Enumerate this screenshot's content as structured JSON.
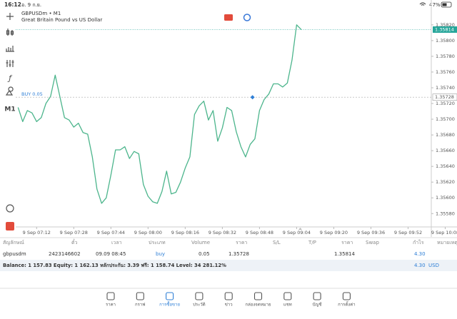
{
  "status_bar": {
    "time": "16:12",
    "date": "อ. 9 ก.ย.",
    "battery": "47%"
  },
  "toolbar": {
    "timeframe": "M1"
  },
  "chart_data": {
    "type": "line",
    "title": "GBPUSDm • M1",
    "subtitle": "Great Britain Pound vs US Dollar",
    "x": [
      "9 Sep 07:04",
      "9 Sep 07:06",
      "9 Sep 07:08",
      "9 Sep 07:10",
      "9 Sep 07:12",
      "9 Sep 07:14",
      "9 Sep 07:16",
      "9 Sep 07:18",
      "9 Sep 07:20",
      "9 Sep 07:22",
      "9 Sep 07:24",
      "9 Sep 07:26",
      "9 Sep 07:28",
      "9 Sep 07:30",
      "9 Sep 07:32",
      "9 Sep 07:34",
      "9 Sep 07:36",
      "9 Sep 07:38",
      "9 Sep 07:40",
      "9 Sep 07:42",
      "9 Sep 07:44",
      "9 Sep 07:46",
      "9 Sep 07:48",
      "9 Sep 07:50",
      "9 Sep 07:52",
      "9 Sep 07:54",
      "9 Sep 07:56",
      "9 Sep 07:58",
      "9 Sep 08:00",
      "9 Sep 08:02",
      "9 Sep 08:04",
      "9 Sep 08:06",
      "9 Sep 08:08",
      "9 Sep 08:10",
      "9 Sep 08:12",
      "9 Sep 08:14",
      "9 Sep 08:16",
      "9 Sep 08:18",
      "9 Sep 08:20",
      "9 Sep 08:22",
      "9 Sep 08:24",
      "9 Sep 08:26",
      "9 Sep 08:28",
      "9 Sep 08:30",
      "9 Sep 08:32",
      "9 Sep 08:34",
      "9 Sep 08:36",
      "9 Sep 08:38",
      "9 Sep 08:40",
      "9 Sep 08:42",
      "9 Sep 08:44",
      "9 Sep 08:46",
      "9 Sep 08:48",
      "9 Sep 08:50",
      "9 Sep 08:52",
      "9 Sep 08:54",
      "9 Sep 08:56",
      "9 Sep 08:58",
      "9 Sep 09:00",
      "9 Sep 09:02",
      "9 Sep 09:04",
      "9 Sep 09:06"
    ],
    "values": [
      1.35715,
      1.35697,
      1.35711,
      1.35708,
      1.35697,
      1.35702,
      1.3572,
      1.35729,
      1.35756,
      1.35729,
      1.35702,
      1.35699,
      1.3569,
      1.35695,
      1.35683,
      1.35681,
      1.35652,
      1.35611,
      1.35593,
      1.356,
      1.35629,
      1.35661,
      1.35661,
      1.35665,
      1.3565,
      1.35659,
      1.35656,
      1.35617,
      1.35602,
      1.35595,
      1.35593,
      1.35608,
      1.35634,
      1.35605,
      1.35607,
      1.3562,
      1.35638,
      1.35652,
      1.35706,
      1.35717,
      1.35723,
      1.35699,
      1.35711,
      1.35672,
      1.35689,
      1.35715,
      1.35711,
      1.35684,
      1.35665,
      1.35652,
      1.35668,
      1.35675,
      1.35711,
      1.35725,
      1.35732,
      1.35745,
      1.35745,
      1.35741,
      1.35746,
      1.35775,
      1.3582,
      1.35814
    ],
    "color": "#4cb58c",
    "xlim": [
      "9 Sep 07:03",
      "9 Sep 10:02"
    ],
    "xticks": [
      "9 Sep 07:12",
      "9 Sep 07:28",
      "9 Sep 07:44",
      "9 Sep 08:00",
      "9 Sep 08:16",
      "9 Sep 08:32",
      "9 Sep 08:48",
      "9 Sep 09:04",
      "9 Sep 09:20",
      "9 Sep 09:36",
      "9 Sep 09:52",
      "9 Sep 10:08"
    ],
    "ylim": [
      1.35563,
      1.35838
    ],
    "yticks": [
      {
        "value": 1.3582,
        "label": "1.35820"
      },
      {
        "value": 1.358,
        "label": "1.35800"
      },
      {
        "value": 1.3578,
        "label": "1.35780"
      },
      {
        "value": 1.3576,
        "label": "1.35760"
      },
      {
        "value": 1.3574,
        "label": "1.35740"
      },
      {
        "value": 1.3572,
        "label": "1.35720"
      },
      {
        "value": 1.357,
        "label": "1.35700"
      },
      {
        "value": 1.3568,
        "label": "1.35680"
      },
      {
        "value": 1.3566,
        "label": "1.35660"
      },
      {
        "value": 1.3564,
        "label": "1.35640"
      },
      {
        "value": 1.3562,
        "label": "1.35620"
      },
      {
        "value": 1.356,
        "label": "1.35600"
      },
      {
        "value": 1.3558,
        "label": "1.35580"
      }
    ],
    "grid": false,
    "bid": {
      "value": 1.35814,
      "color": "#26a69a"
    },
    "order": {
      "label": "BUY 0.05",
      "price": 1.35728,
      "color": "#2f7fd6"
    }
  },
  "table": {
    "header": [
      "สัญลักษณ์",
      "ตั๋ว",
      "เวลา",
      "ประเภท",
      "Volume",
      "ราคา",
      "S/L",
      "T/P",
      "ราคา",
      "Swap",
      "กำไร",
      "หมายเหตุ"
    ],
    "position": {
      "symbol": "gbpusdm",
      "ticket": "2423146602",
      "time": "09.09 08:45",
      "type": "buy",
      "volume": "0.05",
      "price_open": "1.35728",
      "price_current": "1.35814",
      "profit": "4.30"
    }
  },
  "summary": {
    "text": "Balance: 1 157.83 Equity: 1 162.13 หลักประกัน: 3.39 ฟรี: 1 158.74 Level: 34 281.12%",
    "profit": "4.30",
    "currency": "USD"
  },
  "tabs": [
    "ราคา",
    "กราฟ",
    "การซื้อขาย",
    "ประวัติ",
    "ข่าว",
    "กล่องจดหมาย",
    "แชท",
    "บัญชี",
    "การตั้งค่า"
  ]
}
